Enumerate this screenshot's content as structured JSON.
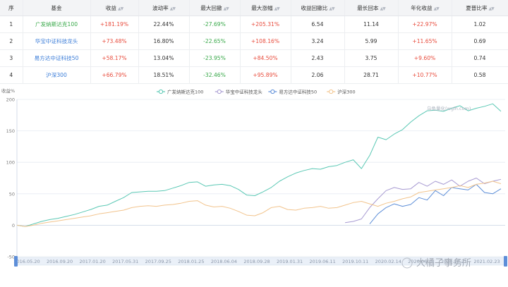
{
  "table": {
    "headers": [
      "序",
      "基金",
      "收益",
      "波动率",
      "最大回撤",
      "最大涨幅",
      "收益回撤比",
      "最长回本",
      "年化收益",
      "夏普比率"
    ],
    "rows": [
      {
        "idx": "1",
        "name": "广发纳斯达克100",
        "ret": "+181.19%",
        "vol": "22.44%",
        "mdd": "-27.69%",
        "maxup": "+205.31%",
        "rdd": "6.54",
        "recover": "11.14",
        "annual": "+22.97%",
        "sharpe": "1.02",
        "name_color": "#39a94a"
      },
      {
        "idx": "2",
        "name": "华宝中证科技龙头",
        "ret": "+73.48%",
        "vol": "16.80%",
        "mdd": "-22.65%",
        "maxup": "+108.16%",
        "rdd": "3.24",
        "recover": "5.99",
        "annual": "+11.65%",
        "sharpe": "0.69",
        "name_color": "#3b7dd8"
      },
      {
        "idx": "3",
        "name": "易方达中证科技50",
        "ret": "+58.17%",
        "vol": "13.04%",
        "mdd": "-23.95%",
        "maxup": "+84.50%",
        "rdd": "2.43",
        "recover": "3.75",
        "annual": "+9.60%",
        "sharpe": "0.74",
        "name_color": "#3b7dd8"
      },
      {
        "idx": "4",
        "name": "沪深300",
        "ret": "+66.79%",
        "vol": "18.51%",
        "mdd": "-32.46%",
        "maxup": "+95.89%",
        "rdd": "2.06",
        "recover": "28.71",
        "annual": "+10.77%",
        "sharpe": "0.58",
        "name_color": "#3b7dd8"
      }
    ]
  },
  "watermark_top": "乌龟量化(wglh.com)",
  "watermark_bottom": "大橘子事务所",
  "chart_data": {
    "type": "line",
    "ylabel": "收益%",
    "ylim": [
      -50,
      200
    ],
    "yticks": [
      -50,
      0,
      50,
      100,
      150,
      200
    ],
    "grid": true,
    "legend_position": "top-center",
    "xticks": [
      "2016.05.20",
      "2016.09.20",
      "2017.01.20",
      "2017.05.31",
      "2017.09.25",
      "2018.01.25",
      "2018.06.04",
      "2018.09.28",
      "2019.01.31",
      "2019.06.11",
      "2019.10.11",
      "2020.02.14",
      "2020.06.16",
      "2020.10.21",
      "2021.02.23"
    ],
    "series": [
      {
        "name": "广发纳斯达克100",
        "color": "#5ac8b4",
        "values": [
          0,
          -2,
          2,
          6,
          9,
          11,
          14,
          17,
          21,
          25,
          30,
          32,
          38,
          44,
          52,
          53,
          54,
          54,
          55,
          59,
          63,
          68,
          69,
          62,
          64,
          65,
          63,
          57,
          48,
          47,
          53,
          60,
          70,
          77,
          83,
          87,
          90,
          89,
          93,
          95,
          100,
          104,
          90,
          111,
          140,
          136,
          145,
          152,
          164,
          174,
          182,
          183,
          181,
          186,
          190,
          182,
          186,
          189,
          193,
          181
        ]
      },
      {
        "name": "华宝中证科技龙头",
        "color": "#a79ad2",
        "values": [
          null,
          null,
          null,
          null,
          null,
          null,
          null,
          null,
          null,
          null,
          null,
          null,
          null,
          null,
          null,
          null,
          null,
          null,
          null,
          null,
          null,
          null,
          null,
          null,
          null,
          null,
          null,
          null,
          null,
          null,
          null,
          null,
          null,
          null,
          null,
          null,
          null,
          null,
          null,
          null,
          4,
          6,
          10,
          28,
          42,
          55,
          60,
          57,
          58,
          68,
          62,
          70,
          65,
          72,
          62,
          70,
          75,
          66,
          70,
          73
        ]
      },
      {
        "name": "易方达中证科技50",
        "color": "#5d8ed8",
        "values": [
          null,
          null,
          null,
          null,
          null,
          null,
          null,
          null,
          null,
          null,
          null,
          null,
          null,
          null,
          null,
          null,
          null,
          null,
          null,
          null,
          null,
          null,
          null,
          null,
          null,
          null,
          null,
          null,
          null,
          null,
          null,
          null,
          null,
          null,
          null,
          null,
          null,
          null,
          null,
          null,
          null,
          null,
          null,
          2,
          18,
          28,
          34,
          30,
          33,
          44,
          40,
          55,
          47,
          60,
          58,
          56,
          65,
          52,
          50,
          58
        ]
      },
      {
        "name": "沪深300",
        "color": "#f2c48d",
        "values": [
          0,
          -2,
          0,
          3,
          5,
          7,
          9,
          11,
          13,
          15,
          18,
          20,
          22,
          24,
          28,
          30,
          31,
          30,
          32,
          33,
          35,
          38,
          39,
          32,
          29,
          30,
          27,
          22,
          16,
          15,
          20,
          28,
          30,
          25,
          24,
          27,
          28,
          30,
          27,
          28,
          32,
          36,
          38,
          34,
          30,
          35,
          38,
          42,
          45,
          52,
          54,
          56,
          58,
          60,
          63,
          60,
          65,
          67,
          70,
          66
        ]
      }
    ]
  }
}
